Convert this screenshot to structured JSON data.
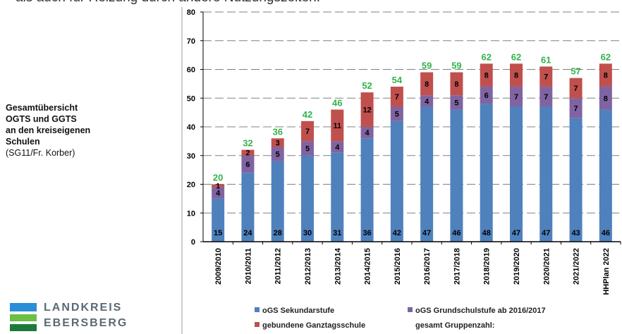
{
  "header_text": "als auch für Heizung durch andere Nutzungszeiten.",
  "side_title": {
    "lines": [
      "Gesamtübersicht",
      "OGTS und GGTS",
      "an den kreiseigenen",
      "Schulen"
    ],
    "source": "(SG11/Fr. Korber)"
  },
  "logo": {
    "line1": "LANDKREIS",
    "line2": "EBERSBERG"
  },
  "colors": {
    "blue": "#4f81bd",
    "purple": "#8064a2",
    "red": "#c0504d",
    "total": "#33b24a"
  },
  "chart_data": {
    "type": "bar",
    "stacked": true,
    "categories": [
      "2009/2010",
      "2010/2011",
      "2011/2012",
      "2012/2013",
      "2013/2014",
      "2014/2015",
      "2015/2016",
      "2016/2017",
      "2017/2018",
      "2018/2019",
      "2019/2020",
      "2020/2021",
      "2021/2022",
      "HHPlan 2022"
    ],
    "series": [
      {
        "name": "oGS Sekundarstufe",
        "color": "#4f81bd",
        "values": [
          15,
          24,
          28,
          30,
          31,
          36,
          42,
          47,
          46,
          48,
          47,
          47,
          43,
          46
        ]
      },
      {
        "name": "oGS Grundschulstufe ab 2016/2017",
        "color": "#8064a2",
        "values": [
          4,
          6,
          5,
          5,
          4,
          4,
          5,
          4,
          5,
          6,
          7,
          7,
          7,
          8
        ]
      },
      {
        "name": "gebundene Ganztagsschule",
        "color": "#c0504d",
        "values": [
          1,
          2,
          3,
          7,
          11,
          12,
          7,
          8,
          8,
          8,
          8,
          7,
          7,
          8
        ]
      }
    ],
    "totals": {
      "name": "gesamt Gruppenzahl:",
      "color": "#33b24a",
      "values": [
        20,
        32,
        36,
        42,
        46,
        52,
        54,
        59,
        59,
        62,
        62,
        61,
        57,
        62
      ]
    },
    "yticks": [
      "0",
      "10",
      "20",
      "30",
      "40",
      "50",
      "60",
      "70",
      "80"
    ],
    "ylim": [
      0,
      80
    ],
    "grid": "dashed horizontal",
    "legend_position": "bottom"
  }
}
